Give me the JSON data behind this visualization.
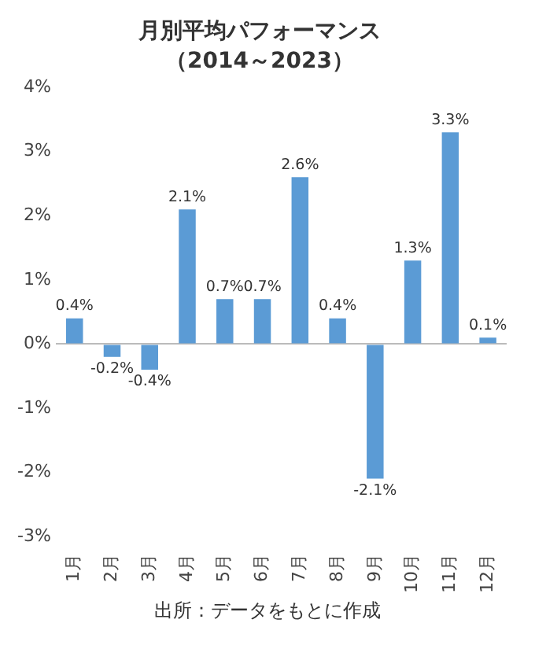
{
  "chart_data": {
    "type": "bar",
    "title": "月別平均パフォーマンス",
    "subtitle": "（2014～2023）",
    "categories": [
      "1月",
      "2月",
      "3月",
      "4月",
      "5月",
      "6月",
      "7月",
      "8月",
      "9月",
      "10月",
      "11月",
      "12月"
    ],
    "values": [
      0.4,
      -0.2,
      -0.4,
      2.1,
      0.7,
      0.7,
      2.6,
      0.4,
      -2.1,
      1.3,
      3.3,
      0.1
    ],
    "value_labels": [
      "0.4%",
      "-0.2%",
      "-0.4%",
      "2.1%",
      "0.7%",
      "0.7%",
      "2.6%",
      "0.4%",
      "-2.1%",
      "1.3%",
      "3.3%",
      "0.1%"
    ],
    "color": "#5b9bd5",
    "ylim": [
      -3,
      4
    ],
    "yticks": [
      {
        "value": -3,
        "label": "-3%"
      },
      {
        "value": -2,
        "label": "-2%"
      },
      {
        "value": -1,
        "label": "-1%"
      },
      {
        "value": 0,
        "label": "0%"
      },
      {
        "value": 1,
        "label": "1%"
      },
      {
        "value": 2,
        "label": "2%"
      },
      {
        "value": 3,
        "label": "3%"
      },
      {
        "value": 4,
        "label": "4%"
      }
    ],
    "annotations": [
      "出所：データをもとに作成"
    ]
  }
}
